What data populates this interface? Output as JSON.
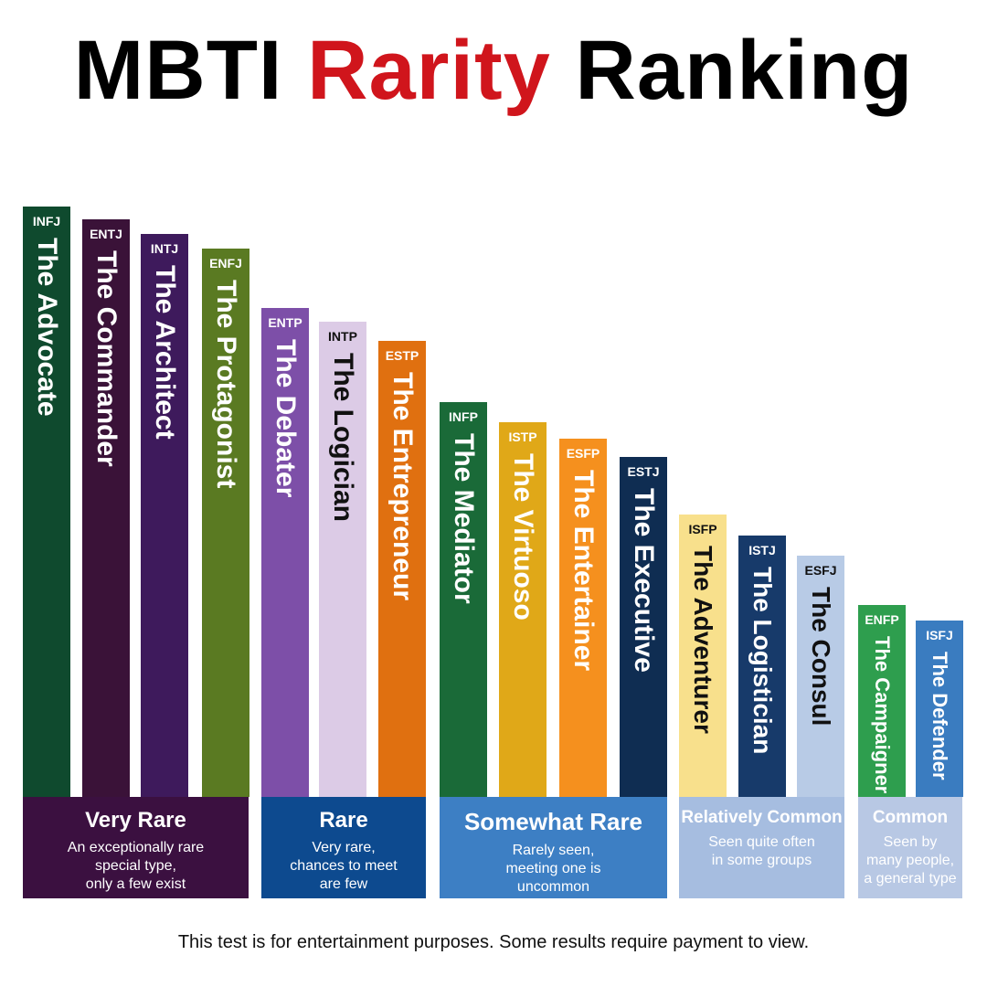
{
  "header": {
    "title_parts": [
      "MBTI",
      "Rarity",
      "Ranking"
    ]
  },
  "types": [
    {
      "code": "INFJ",
      "name": "The Advocate"
    },
    {
      "code": "ENTJ",
      "name": "The Commander"
    },
    {
      "code": "INTJ",
      "name": "The Architect"
    },
    {
      "code": "ENFJ",
      "name": "The Protagonist"
    },
    {
      "code": "ENTP",
      "name": "The Debater"
    },
    {
      "code": "INTP",
      "name": "The Logician"
    },
    {
      "code": "ESTP",
      "name": "The Entrepreneur"
    },
    {
      "code": "INFP",
      "name": "The Mediator"
    },
    {
      "code": "ISTP",
      "name": "The Virtuoso"
    },
    {
      "code": "ESFP",
      "name": "The Entertainer"
    },
    {
      "code": "ESTJ",
      "name": "The Executive"
    },
    {
      "code": "ISFP",
      "name": "The Adventurer"
    },
    {
      "code": "ISTJ",
      "name": "The Logistician"
    },
    {
      "code": "ESFJ",
      "name": "The Consul"
    },
    {
      "code": "ENFP",
      "name": "The Campaigner"
    },
    {
      "code": "ISFJ",
      "name": "The Defender"
    }
  ],
  "groups": [
    {
      "title": "Very Rare",
      "description": [
        "An exceptionally rare",
        "special type,",
        "only a few exist"
      ]
    },
    {
      "title": "Rare",
      "description": [
        "Very rare,",
        "chances to meet",
        "are few"
      ]
    },
    {
      "title": "Somewhat Rare",
      "description": [
        "Rarely seen,",
        "meeting one is",
        "uncommon"
      ]
    },
    {
      "title": "Relatively Common",
      "description": [
        "Seen quite often",
        "in some groups"
      ]
    },
    {
      "title": "Common",
      "description": [
        "Seen by",
        "many people,",
        "a general type"
      ]
    }
  ],
  "footer": "This test is for entertainment purposes. Some results require payment to view."
}
